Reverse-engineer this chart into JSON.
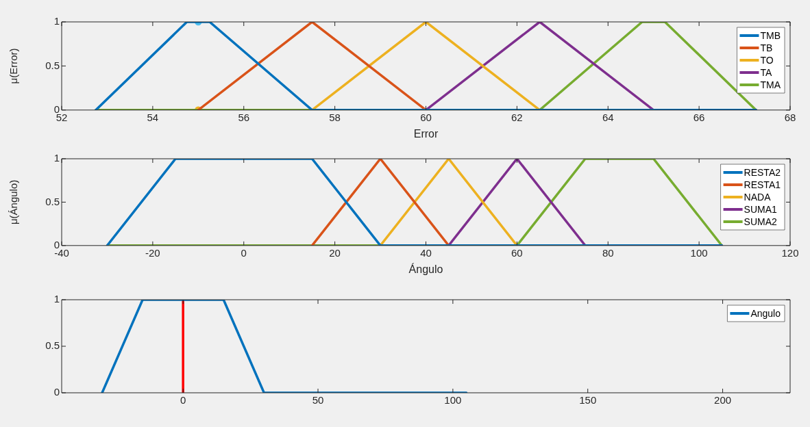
{
  "chart_data": [
    {
      "type": "line",
      "xlabel": "Error",
      "ylabel": "μ(Error)",
      "xlim": [
        52,
        68
      ],
      "xticks": [
        52,
        54,
        56,
        58,
        60,
        62,
        64,
        66,
        68
      ],
      "ylim": [
        0,
        1
      ],
      "yticks": [
        0,
        0.5,
        1
      ],
      "legend": "top right",
      "grid": false,
      "marker": "none",
      "line_style": "solid",
      "series": [
        {
          "name": "TMB",
          "color": "#0072bd",
          "x": [
            52.75,
            54.75,
            55.25,
            57.5,
            67.25
          ],
          "values": [
            0,
            1,
            1,
            0,
            0
          ]
        },
        {
          "name": "TB",
          "color": "#d95319",
          "x": [
            55,
            57.5,
            60
          ],
          "values": [
            0,
            1,
            0
          ]
        },
        {
          "name": "TO",
          "color": "#edb120",
          "x": [
            57.5,
            60,
            62.5,
            65
          ],
          "values": [
            0,
            1,
            0,
            0
          ]
        },
        {
          "name": "TA",
          "color": "#7e2f8e",
          "x": [
            60,
            62.5,
            65,
            67.25
          ],
          "values": [
            0,
            1,
            0,
            0
          ]
        },
        {
          "name": "TMA",
          "color": "#77ac30",
          "x": [
            52.75,
            62.5,
            64.75,
            65.25,
            67.25
          ],
          "values": [
            0,
            0,
            1,
            1,
            0
          ]
        },
        {
          "type": "scatter",
          "marker": "circle",
          "color": "#4dbeee",
          "x": [
            55
          ],
          "values": [
            1
          ]
        },
        {
          "type": "scatter",
          "marker": "circle",
          "color": "#edb120",
          "x": [
            55
          ],
          "values": [
            0
          ]
        }
      ]
    },
    {
      "type": "line",
      "xlabel": "Ángulo",
      "ylabel": "μ(Ángulo)",
      "xlim": [
        -40,
        120
      ],
      "xticks": [
        -40,
        -20,
        0,
        20,
        40,
        60,
        80,
        100,
        120
      ],
      "ylim": [
        0,
        1
      ],
      "yticks": [
        0,
        0.5,
        1
      ],
      "legend": "top right",
      "grid": false,
      "marker": "none",
      "line_style": "solid",
      "series": [
        {
          "name": "RESTA2",
          "color": "#0072bd",
          "x": [
            -30,
            -15,
            15,
            30,
            105
          ],
          "values": [
            0,
            1,
            1,
            0,
            0
          ]
        },
        {
          "name": "RESTA1",
          "color": "#d95319",
          "x": [
            15,
            30,
            45
          ],
          "values": [
            0,
            1,
            0
          ]
        },
        {
          "name": "NADA",
          "color": "#edb120",
          "x": [
            30,
            45,
            60,
            75
          ],
          "values": [
            0,
            1,
            0,
            0
          ]
        },
        {
          "name": "SUMA1",
          "color": "#7e2f8e",
          "x": [
            45,
            60,
            75,
            105
          ],
          "values": [
            0,
            1,
            0,
            0
          ]
        },
        {
          "name": "SUMA2",
          "color": "#77ac30",
          "x": [
            -30,
            60,
            75,
            90,
            105
          ],
          "values": [
            0,
            0,
            1,
            1,
            0
          ]
        }
      ]
    },
    {
      "type": "line",
      "xlim": [
        -45,
        225
      ],
      "xticks": [
        0,
        50,
        100,
        150,
        200
      ],
      "ylim": [
        0,
        1
      ],
      "yticks": [
        0,
        0.5,
        1
      ],
      "legend": "top right",
      "grid": false,
      "marker": "none",
      "line_style": "solid",
      "series": [
        {
          "name": "Angulo",
          "color": "#0072bd",
          "x": [
            -30,
            -15,
            15,
            30,
            105
          ],
          "values": [
            0,
            1,
            1,
            0,
            0
          ]
        },
        {
          "color": "#ff0000",
          "x": [
            0,
            0
          ],
          "values": [
            0,
            1
          ]
        }
      ]
    }
  ]
}
